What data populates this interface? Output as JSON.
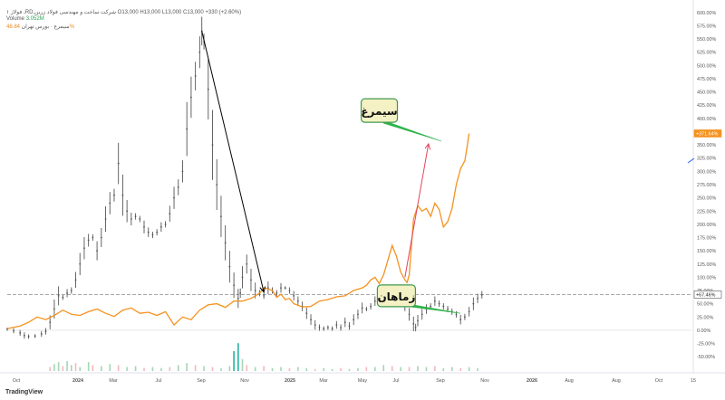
{
  "header": {
    "symbol_line": "فولاژ ۱ ،RD,شرکت ساخت و مهندسی فولاد زرین",
    "ohlc": "O13,000 H13,000 L13,000 C13,000 +330 (+2.60%)",
    "volume_label": "Volume",
    "volume_value": "3.052M",
    "compare_label": "سیمرغ · بورس تهران",
    "compare_value": "48.84%"
  },
  "brand": "TradingView",
  "colors": {
    "main_series": "#555555",
    "compare_series": "#f5921f",
    "arrow_black": "#000000",
    "arrow_red": "#e0465a",
    "pointer_green": "#2eb34a",
    "label_bg": "#f4f1c4",
    "label_border": "#3f9b4e",
    "badge_orange": "#f5921f",
    "badge_gray": "#ffffff",
    "axis_text": "#555555",
    "volume_green": "#a5d6b4",
    "volume_red": "#f2b8bd",
    "volume_teal": "#24b3a0"
  },
  "chart_data": {
    "type": "line",
    "x_ticks": [
      "Oct",
      "2024",
      "Mar",
      "Jul",
      "Sep",
      "Nov",
      "2025",
      "Mar",
      "May",
      "Jul",
      "Sep",
      "Nov",
      "2026",
      "Aug",
      "Aug",
      "Oct",
      "15"
    ],
    "y_ticks": [
      "600.00%",
      "575.00%",
      "550.00%",
      "525.00%",
      "500.00%",
      "475.00%",
      "450.00%",
      "425.00%",
      "400.00%",
      "375.00%",
      "350.00%",
      "325.00%",
      "300.00%",
      "275.00%",
      "250.00%",
      "225.00%",
      "200.00%",
      "175.00%",
      "150.00%",
      "125.00%",
      "100.00%",
      "75.00%",
      "50.00%",
      "25.00%",
      "0.00%",
      "-25.00%",
      "-50.00%"
    ],
    "ylim": [
      -60,
      610
    ],
    "y_unit": "%",
    "badges": [
      {
        "label": "+371.64%",
        "value": 371.64,
        "style": "orange"
      },
      {
        "label": "+67.46%",
        "value": 67.46,
        "style": "gray"
      }
    ],
    "reference_line": 67.46,
    "series": [
      {
        "style": "dots",
        "color_key": "main_series",
        "points": [
          [
            0,
            2
          ],
          [
            3,
            -1
          ],
          [
            6,
            -5
          ],
          [
            8,
            -10
          ],
          [
            10,
            -12
          ],
          [
            13,
            -11
          ],
          [
            16,
            -7
          ],
          [
            18,
            -2
          ],
          [
            20,
            15
          ],
          [
            22,
            40
          ],
          [
            24,
            65
          ],
          [
            26,
            62
          ],
          [
            28,
            70
          ],
          [
            30,
            75
          ],
          [
            32,
            95
          ],
          [
            34,
            125
          ],
          [
            36,
            155
          ],
          [
            38,
            170
          ],
          [
            40,
            175
          ],
          [
            42,
            150
          ],
          [
            44,
            175
          ],
          [
            46,
            210
          ],
          [
            48,
            240
          ],
          [
            50,
            255
          ],
          [
            52,
            315
          ],
          [
            54,
            255
          ],
          [
            56,
            225
          ],
          [
            58,
            210
          ],
          [
            60,
            215
          ],
          [
            62,
            210
          ],
          [
            64,
            195
          ],
          [
            66,
            185
          ],
          [
            68,
            180
          ],
          [
            70,
            185
          ],
          [
            72,
            195
          ],
          [
            74,
            200
          ],
          [
            76,
            220
          ],
          [
            78,
            250
          ],
          [
            80,
            270
          ],
          [
            82,
            300
          ],
          [
            84,
            380
          ],
          [
            86,
            440
          ],
          [
            88,
            480
          ],
          [
            90,
            525
          ],
          [
            91,
            565
          ],
          [
            92,
            545
          ],
          [
            94,
            455
          ],
          [
            96,
            350
          ],
          [
            98,
            275
          ],
          [
            100,
            215
          ],
          [
            102,
            165
          ],
          [
            104,
            120
          ],
          [
            106,
            85
          ],
          [
            108,
            60
          ],
          [
            109,
            70
          ],
          [
            110,
            100
          ],
          [
            112,
            125
          ],
          [
            114,
            95
          ],
          [
            116,
            75
          ],
          [
            118,
            70
          ],
          [
            120,
            65
          ],
          [
            122,
            80
          ],
          [
            124,
            75
          ],
          [
            126,
            70
          ],
          [
            128,
            80
          ],
          [
            130,
            80
          ],
          [
            132,
            75
          ],
          [
            134,
            65
          ],
          [
            136,
            55
          ],
          [
            138,
            45
          ],
          [
            140,
            32
          ],
          [
            142,
            20
          ],
          [
            144,
            10
          ],
          [
            146,
            5
          ],
          [
            148,
            3
          ],
          [
            150,
            5
          ],
          [
            152,
            3
          ],
          [
            154,
            10
          ],
          [
            156,
            5
          ],
          [
            158,
            15
          ],
          [
            160,
            8
          ],
          [
            162,
            20
          ],
          [
            164,
            30
          ],
          [
            166,
            42
          ],
          [
            168,
            40
          ],
          [
            170,
            45
          ],
          [
            172,
            55
          ],
          [
            174,
            50
          ],
          [
            176,
            65
          ],
          [
            178,
            60
          ],
          [
            180,
            72
          ],
          [
            182,
            65
          ],
          [
            184,
            55
          ],
          [
            186,
            45
          ],
          [
            188,
            30
          ],
          [
            190,
            12
          ],
          [
            191,
            5
          ],
          [
            192,
            18
          ],
          [
            194,
            30
          ],
          [
            196,
            40
          ],
          [
            198,
            45
          ],
          [
            200,
            55
          ],
          [
            202,
            50
          ],
          [
            204,
            45
          ],
          [
            206,
            40
          ],
          [
            208,
            35
          ],
          [
            210,
            30
          ],
          [
            212,
            20
          ],
          [
            214,
            25
          ],
          [
            216,
            35
          ],
          [
            218,
            50
          ],
          [
            220,
            60
          ],
          [
            222,
            67
          ]
        ]
      },
      {
        "style": "line",
        "color_key": "compare_series",
        "points": [
          [
            0,
            3
          ],
          [
            6,
            8
          ],
          [
            10,
            15
          ],
          [
            14,
            25
          ],
          [
            18,
            20
          ],
          [
            22,
            28
          ],
          [
            26,
            38
          ],
          [
            30,
            30
          ],
          [
            34,
            28
          ],
          [
            38,
            35
          ],
          [
            42,
            40
          ],
          [
            46,
            32
          ],
          [
            50,
            26
          ],
          [
            54,
            38
          ],
          [
            58,
            42
          ],
          [
            62,
            32
          ],
          [
            66,
            34
          ],
          [
            70,
            28
          ],
          [
            74,
            35
          ],
          [
            78,
            10
          ],
          [
            82,
            25
          ],
          [
            86,
            20
          ],
          [
            90,
            38
          ],
          [
            94,
            48
          ],
          [
            98,
            50
          ],
          [
            102,
            43
          ],
          [
            106,
            55
          ],
          [
            110,
            55
          ],
          [
            114,
            60
          ],
          [
            118,
            70
          ],
          [
            120,
            80
          ],
          [
            122,
            78
          ],
          [
            124,
            75
          ],
          [
            126,
            62
          ],
          [
            128,
            68
          ],
          [
            130,
            58
          ],
          [
            132,
            60
          ],
          [
            134,
            50
          ],
          [
            138,
            44
          ],
          [
            142,
            45
          ],
          [
            146,
            55
          ],
          [
            150,
            58
          ],
          [
            154,
            63
          ],
          [
            158,
            65
          ],
          [
            162,
            75
          ],
          [
            166,
            80
          ],
          [
            168,
            85
          ],
          [
            170,
            95
          ],
          [
            172,
            100
          ],
          [
            174,
            88
          ],
          [
            176,
            105
          ],
          [
            178,
            132
          ],
          [
            180,
            160
          ],
          [
            182,
            140
          ],
          [
            184,
            110
          ],
          [
            186,
            95
          ],
          [
            187,
            90
          ],
          [
            188,
            105
          ],
          [
            190,
            210
          ],
          [
            192,
            235
          ],
          [
            194,
            225
          ],
          [
            196,
            230
          ],
          [
            198,
            215
          ],
          [
            200,
            240
          ],
          [
            202,
            228
          ],
          [
            204,
            195
          ],
          [
            206,
            205
          ],
          [
            208,
            230
          ],
          [
            210,
            275
          ],
          [
            212,
            305
          ],
          [
            214,
            320
          ],
          [
            215,
            345
          ],
          [
            216,
            371.64
          ]
        ]
      }
    ],
    "volume": [
      [
        20,
        4,
        "red"
      ],
      [
        22,
        7,
        "green"
      ],
      [
        24,
        9,
        "green"
      ],
      [
        26,
        5,
        "red"
      ],
      [
        28,
        10,
        "green"
      ],
      [
        30,
        6,
        "green"
      ],
      [
        32,
        8,
        "red"
      ],
      [
        34,
        4,
        "green"
      ],
      [
        38,
        9,
        "green"
      ],
      [
        40,
        6,
        "red"
      ],
      [
        44,
        5,
        "green"
      ],
      [
        48,
        7,
        "green"
      ],
      [
        52,
        6,
        "red"
      ],
      [
        56,
        4,
        "green"
      ],
      [
        60,
        5,
        "green"
      ],
      [
        64,
        3,
        "red"
      ],
      [
        68,
        4,
        "green"
      ],
      [
        72,
        3,
        "green"
      ],
      [
        76,
        4,
        "red"
      ],
      [
        80,
        6,
        "green"
      ],
      [
        84,
        8,
        "green"
      ],
      [
        88,
        6,
        "red"
      ],
      [
        92,
        5,
        "green"
      ],
      [
        96,
        4,
        "red"
      ],
      [
        100,
        3,
        "green"
      ],
      [
        104,
        5,
        "green"
      ],
      [
        106,
        20,
        "teal"
      ],
      [
        108,
        28,
        "teal"
      ],
      [
        110,
        12,
        "green"
      ],
      [
        112,
        6,
        "red"
      ],
      [
        116,
        4,
        "green"
      ],
      [
        120,
        5,
        "red"
      ],
      [
        124,
        3,
        "green"
      ],
      [
        128,
        4,
        "green"
      ],
      [
        132,
        3,
        "red"
      ],
      [
        136,
        4,
        "green"
      ],
      [
        140,
        3,
        "green"
      ],
      [
        144,
        2,
        "red"
      ],
      [
        148,
        3,
        "green"
      ],
      [
        152,
        2,
        "green"
      ],
      [
        156,
        3,
        "red"
      ],
      [
        160,
        2,
        "green"
      ],
      [
        164,
        3,
        "green"
      ],
      [
        168,
        4,
        "red"
      ],
      [
        172,
        4,
        "green"
      ],
      [
        176,
        6,
        "green"
      ],
      [
        180,
        5,
        "red"
      ],
      [
        184,
        4,
        "green"
      ],
      [
        188,
        4,
        "red"
      ],
      [
        192,
        5,
        "green"
      ],
      [
        196,
        4,
        "green"
      ],
      [
        200,
        5,
        "red"
      ],
      [
        204,
        3,
        "green"
      ],
      [
        208,
        4,
        "green"
      ],
      [
        212,
        3,
        "red"
      ],
      [
        216,
        4,
        "green"
      ],
      [
        220,
        3,
        "green"
      ]
    ],
    "annotations": [
      {
        "text": "سیمرغ",
        "kind": "callout"
      },
      {
        "text": "زماهان",
        "kind": "callout"
      }
    ],
    "arrows": [
      {
        "from": [
          91,
          565
        ],
        "to": [
          120,
          72
        ],
        "color_key": "arrow_black"
      },
      {
        "from": [
          186,
          100
        ],
        "to": [
          197,
          352
        ],
        "color_key": "arrow_red"
      }
    ],
    "pointers": [
      {
        "from": [
          176,
          396
        ],
        "to": [
          203,
          357
        ],
        "color_key": "pointer_green"
      },
      {
        "from": [
          187,
          50
        ],
        "to": [
          212,
          32
        ],
        "color_key": "pointer_green"
      }
    ]
  }
}
